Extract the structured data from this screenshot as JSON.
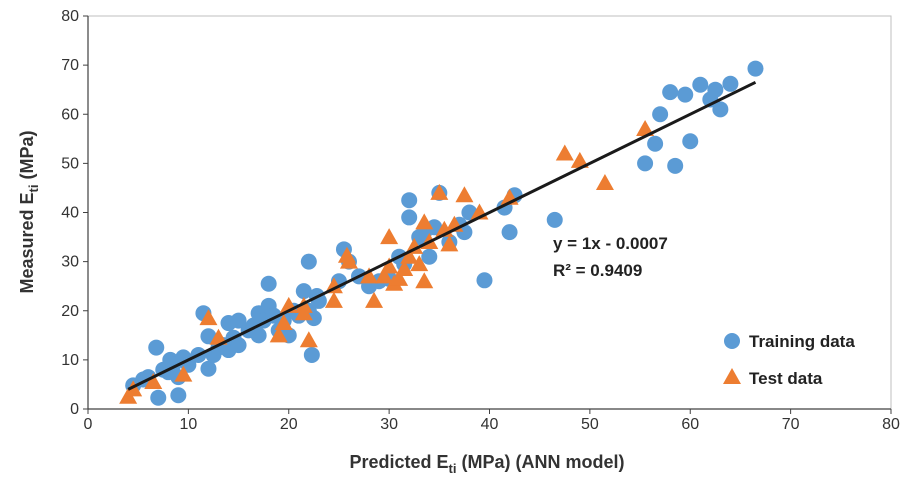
{
  "chart_data": {
    "type": "scatter",
    "xlabel_main": "Predicted E",
    "xlabel_sub": "ti",
    "xlabel_rest": " (MPa) (ANN model)",
    "ylabel_main": "Measured E",
    "ylabel_sub": "ti",
    "ylabel_rest": " (MPa)",
    "xlim": [
      0,
      80
    ],
    "ylim": [
      0,
      80
    ],
    "xticks": [
      "0",
      "10",
      "20",
      "30",
      "40",
      "50",
      "60",
      "70",
      "80"
    ],
    "yticks": [
      "0",
      "10",
      "20",
      "30",
      "40",
      "50",
      "60",
      "70",
      "80"
    ],
    "grid": false,
    "legend_position": "bottom-right",
    "colors": {
      "training": "#5b9bd5",
      "test": "#ed7d31",
      "trendline": "#1a1a1a"
    },
    "annotations": {
      "equation": "y = 1x - 0.0007",
      "r2": "R² = 0.9409"
    },
    "trendline": {
      "x": [
        4,
        66.5
      ],
      "y": [
        4,
        66.5
      ]
    },
    "series": [
      {
        "name": "Training data",
        "marker": "circle",
        "points": [
          [
            4.5,
            4.8
          ],
          [
            5.5,
            6
          ],
          [
            6,
            6.5
          ],
          [
            6.8,
            12.5
          ],
          [
            7,
            2.3
          ],
          [
            7.5,
            8
          ],
          [
            8,
            7.5
          ],
          [
            8.2,
            10
          ],
          [
            8.5,
            9
          ],
          [
            9,
            6.5
          ],
          [
            9,
            2.8
          ],
          [
            9.5,
            10.5
          ],
          [
            10,
            9
          ],
          [
            11,
            11
          ],
          [
            11.5,
            19.5
          ],
          [
            12,
            8.2
          ],
          [
            12,
            14.8
          ],
          [
            12.5,
            11
          ],
          [
            13,
            12.5
          ],
          [
            13.5,
            13
          ],
          [
            14,
            12
          ],
          [
            14,
            17.5
          ],
          [
            14.5,
            14.5
          ],
          [
            15,
            13
          ],
          [
            15,
            18
          ],
          [
            16,
            16
          ],
          [
            16.5,
            17
          ],
          [
            17,
            15
          ],
          [
            17,
            19.5
          ],
          [
            17.5,
            18
          ],
          [
            18,
            25.5
          ],
          [
            18,
            21
          ],
          [
            18.5,
            19
          ],
          [
            19,
            16
          ],
          [
            19.5,
            18
          ],
          [
            20,
            15
          ],
          [
            20.5,
            20
          ],
          [
            21,
            19
          ],
          [
            21.5,
            24
          ],
          [
            22,
            30
          ],
          [
            22,
            20
          ],
          [
            22.5,
            18.5
          ],
          [
            22.8,
            23
          ],
          [
            22.3,
            11
          ],
          [
            23,
            22
          ],
          [
            25,
            26
          ],
          [
            25.5,
            32.5
          ],
          [
            26,
            30
          ],
          [
            27,
            27
          ],
          [
            28,
            25
          ],
          [
            29,
            26
          ],
          [
            30,
            26.5
          ],
          [
            31,
            31
          ],
          [
            31.5,
            29.5
          ],
          [
            32,
            42.5
          ],
          [
            32,
            39
          ],
          [
            33,
            35
          ],
          [
            33.5,
            36
          ],
          [
            34,
            31
          ],
          [
            34.5,
            37
          ],
          [
            35,
            44
          ],
          [
            36,
            34
          ],
          [
            37,
            37.5
          ],
          [
            37.5,
            36
          ],
          [
            38,
            40
          ],
          [
            39.5,
            26.2
          ],
          [
            41.5,
            41
          ],
          [
            42,
            36
          ],
          [
            42.5,
            43.5
          ],
          [
            46.5,
            38.5
          ],
          [
            55.5,
            50
          ],
          [
            56.5,
            54
          ],
          [
            57,
            60
          ],
          [
            58,
            64.5
          ],
          [
            58.5,
            49.5
          ],
          [
            59.5,
            64
          ],
          [
            60,
            54.5
          ],
          [
            61,
            66
          ],
          [
            62,
            63
          ],
          [
            62.5,
            65
          ],
          [
            63,
            61
          ],
          [
            64,
            66.2
          ],
          [
            66.5,
            69.3
          ]
        ]
      },
      {
        "name": "Test data",
        "marker": "triangle",
        "points": [
          [
            4,
            2.5
          ],
          [
            4.5,
            4
          ],
          [
            6.5,
            5.5
          ],
          [
            9.5,
            7
          ],
          [
            12,
            18.5
          ],
          [
            13,
            14.5
          ],
          [
            19,
            15
          ],
          [
            19.5,
            17.5
          ],
          [
            20,
            21
          ],
          [
            21.5,
            21
          ],
          [
            21.5,
            19.5
          ],
          [
            22,
            14
          ],
          [
            24.5,
            22
          ],
          [
            24.5,
            25
          ],
          [
            25.8,
            31.2
          ],
          [
            26,
            30
          ],
          [
            28,
            27
          ],
          [
            28.5,
            22
          ],
          [
            29.5,
            27
          ],
          [
            30,
            35
          ],
          [
            30,
            29
          ],
          [
            30.5,
            25.5
          ],
          [
            31,
            26.5
          ],
          [
            31.5,
            28.5
          ],
          [
            32,
            31
          ],
          [
            32.5,
            33
          ],
          [
            33,
            29.5
          ],
          [
            33.5,
            38
          ],
          [
            33.5,
            26
          ],
          [
            34,
            34
          ],
          [
            35,
            44
          ],
          [
            35.5,
            36.5
          ],
          [
            36,
            33.5
          ],
          [
            36.5,
            37.5
          ],
          [
            37.5,
            43.5
          ],
          [
            39,
            40
          ],
          [
            42,
            43
          ],
          [
            47.5,
            52
          ],
          [
            49,
            50.5
          ],
          [
            51.5,
            46
          ],
          [
            55.5,
            57
          ]
        ]
      }
    ]
  }
}
